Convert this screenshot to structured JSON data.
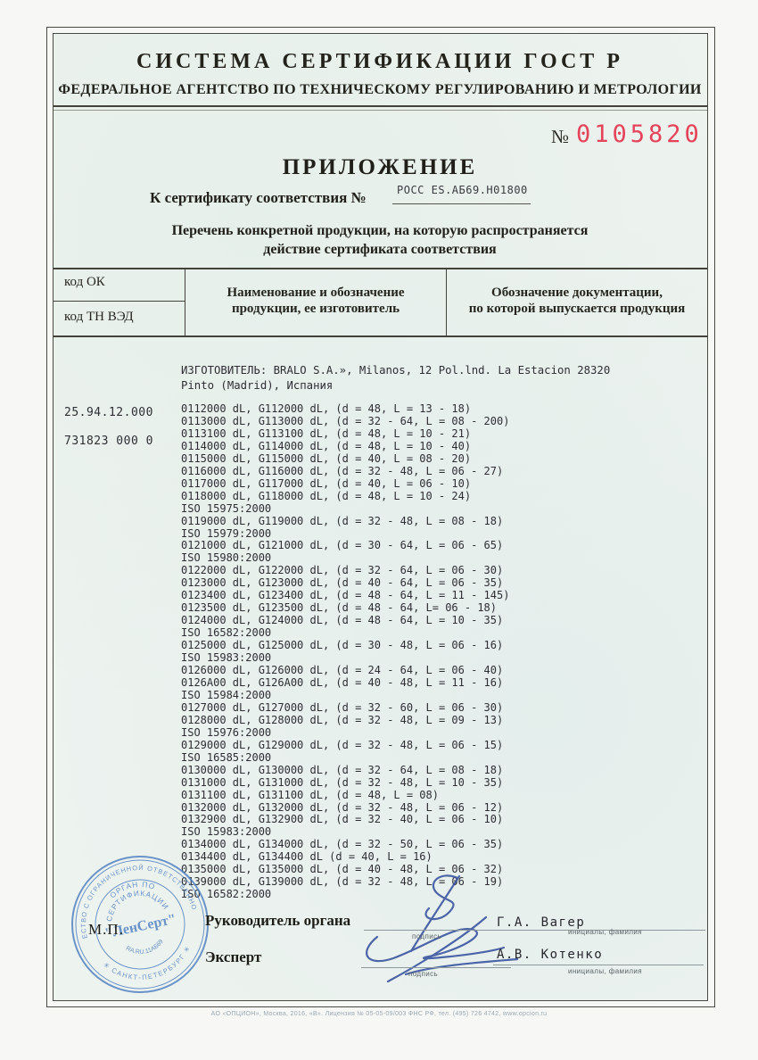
{
  "header": {
    "title": "СИСТЕМА СЕРТИФИКАЦИИ ГОСТ Р",
    "subtitle": "ФЕДЕРАЛЬНОЕ АГЕНТСТВО ПО ТЕХНИЧЕСКОМУ РЕГУЛИРОВАНИЮ И МЕТРОЛОГИИ"
  },
  "serial": {
    "prefix": "№",
    "number": "0105820",
    "color": "#e5435a"
  },
  "appendix": {
    "title": "ПРИЛОЖЕНИЕ",
    "cert_label": "К сертификату соответствия №",
    "cert_number": "РОСС ES.АБ69.Н01800",
    "desc_line1": "Перечень конкретной продукции,  на которую распространяется",
    "desc_line2": "действие сертификата соответствия"
  },
  "table": {
    "col1_top": "код ОК",
    "col1_bottom": "код ТН ВЭД",
    "col2_line1": "Наименование и обозначение",
    "col2_line2": "продукции, ее изготовитель",
    "col3_line1": "Обозначение документации,",
    "col3_line2": "по которой выпускается продукция"
  },
  "codes": {
    "ok": "25.94.12.000",
    "tnved": "731823 000 0"
  },
  "manufacturer": "ИЗГОТОВИТЕЛЬ: BRALO S.A.», Milanos, 12 Pol.lnd. La Estacion 28320\nPinto (Madrid), Испания",
  "products": [
    "0112000 dL, G112000 dL, (d = 48, L = 13 - 18)",
    "0113000 dL, G113000 dL, (d = 32 - 64, L = 08 - 200)",
    "0113100 dL, G113100 dL, (d = 48, L = 10 - 21)",
    "0114000 dL, G114000 dL, (d = 48, L = 10 - 40)",
    "0115000 dL, G115000 dL, (d = 40, L = 08 - 20)",
    "0116000 dL, G116000 dL, (d = 32 - 48, L = 06 - 27)",
    "0117000 dL, G117000 dL, (d = 40, L = 06 - 10)",
    "0118000 dL, G118000 dL, (d = 48, L = 10 - 24)",
    "ISO 15975:2000",
    "0119000 dL, G119000 dL, (d = 32 - 48, L = 08 - 18)",
    "ISO 15979:2000",
    "0121000 dL, G121000 dL, (d = 30 - 64, L = 06 - 65)",
    "ISO 15980:2000",
    "0122000 dL, G122000 dL, (d = 32 - 64, L = 06 - 30)",
    "0123000 dL, G123000 dL, (d = 40 - 64, L = 06 - 35)",
    "0123400 dL, G123400 dL, (d = 48 - 64, L = 11 - 145)",
    "0123500 dL, G123500 dL, (d = 48 - 64, L= 06 - 18)",
    "0124000 dL, G124000 dL, (d = 48 - 64, L = 10 - 35)",
    "ISO 16582:2000",
    "0125000 dL, G125000 dL, (d = 30 - 48, L = 06 - 16)",
    "ISO 15983:2000",
    "0126000 dL, G126000 dL, (d = 24 - 64, L = 06 - 40)",
    "0126A00 dL, G126A00 dL, (d = 40 - 48, L = 11 - 16)",
    "ISO 15984:2000",
    "0127000 dL, G127000 dL, (d = 32 - 60, L = 06 - 30)",
    "0128000 dL, G128000 dL, (d = 32 - 48, L = 09 - 13)",
    "ISO 15976:2000",
    "0129000 dL, G129000 dL, (d = 32 - 48, L = 06 - 15)",
    "ISO 16585:2000",
    "0130000 dL, G130000 dL, (d = 32 - 64, L = 08 - 18)",
    "0131000 dL, G131000 dL, (d = 32 - 48, L = 10 - 35)",
    "0131100 dL, G131100 dL, (d = 48, L = 08)",
    "0132000 dL, G132000 dL, (d = 32 - 48, L = 06 - 12)",
    "0132900 dL, G132900 dL, (d = 32 - 40, L = 06 - 10)",
    "ISO 15983:2000",
    "0134000 dL, G134000 dL, (d = 32 - 50, L = 06 - 35)",
    "0134400 dL, G134400 dL (d = 40, L = 16)",
    "0135000 dL, G135000 dL, (d = 40 - 48, L = 06 - 32)",
    "0139000 dL, G139000 dL, (d = 32 - 48, L = 06 - 19)",
    "ISO 16582:2000"
  ],
  "signatures": {
    "row1_role": "Руководитель органа",
    "row1_name": "Г.А. Вагер",
    "row2_role": "Эксперт",
    "row2_name": "А.В. Котенко",
    "sign_label": "подпись",
    "name_label": "инициалы, фамилия"
  },
  "stamp": {
    "ring_top": "ОБЩЕСТВО С ОГРАНИЧЕННОЙ ОТВЕТСТВЕННОСТЬЮ",
    "ring_bottom": "✳ САНКТ-ПЕТЕРБУРГ ✳",
    "inner_line1": "ОРГАН ПО",
    "inner_line2": "СЕРТИФИКАЦИИ",
    "center": "\"ЛенСерт\"",
    "reg_number": "RA.RU.11АБ69",
    "mp_label": "М.П.",
    "color": "#4d7fc0"
  },
  "footer": "АО «ОПЦИОН», Москва, 2016, «В».  Лицензия № 05-05-09/003 ФНС РФ, тел. (495) 726 4742, www.opcion.ru"
}
